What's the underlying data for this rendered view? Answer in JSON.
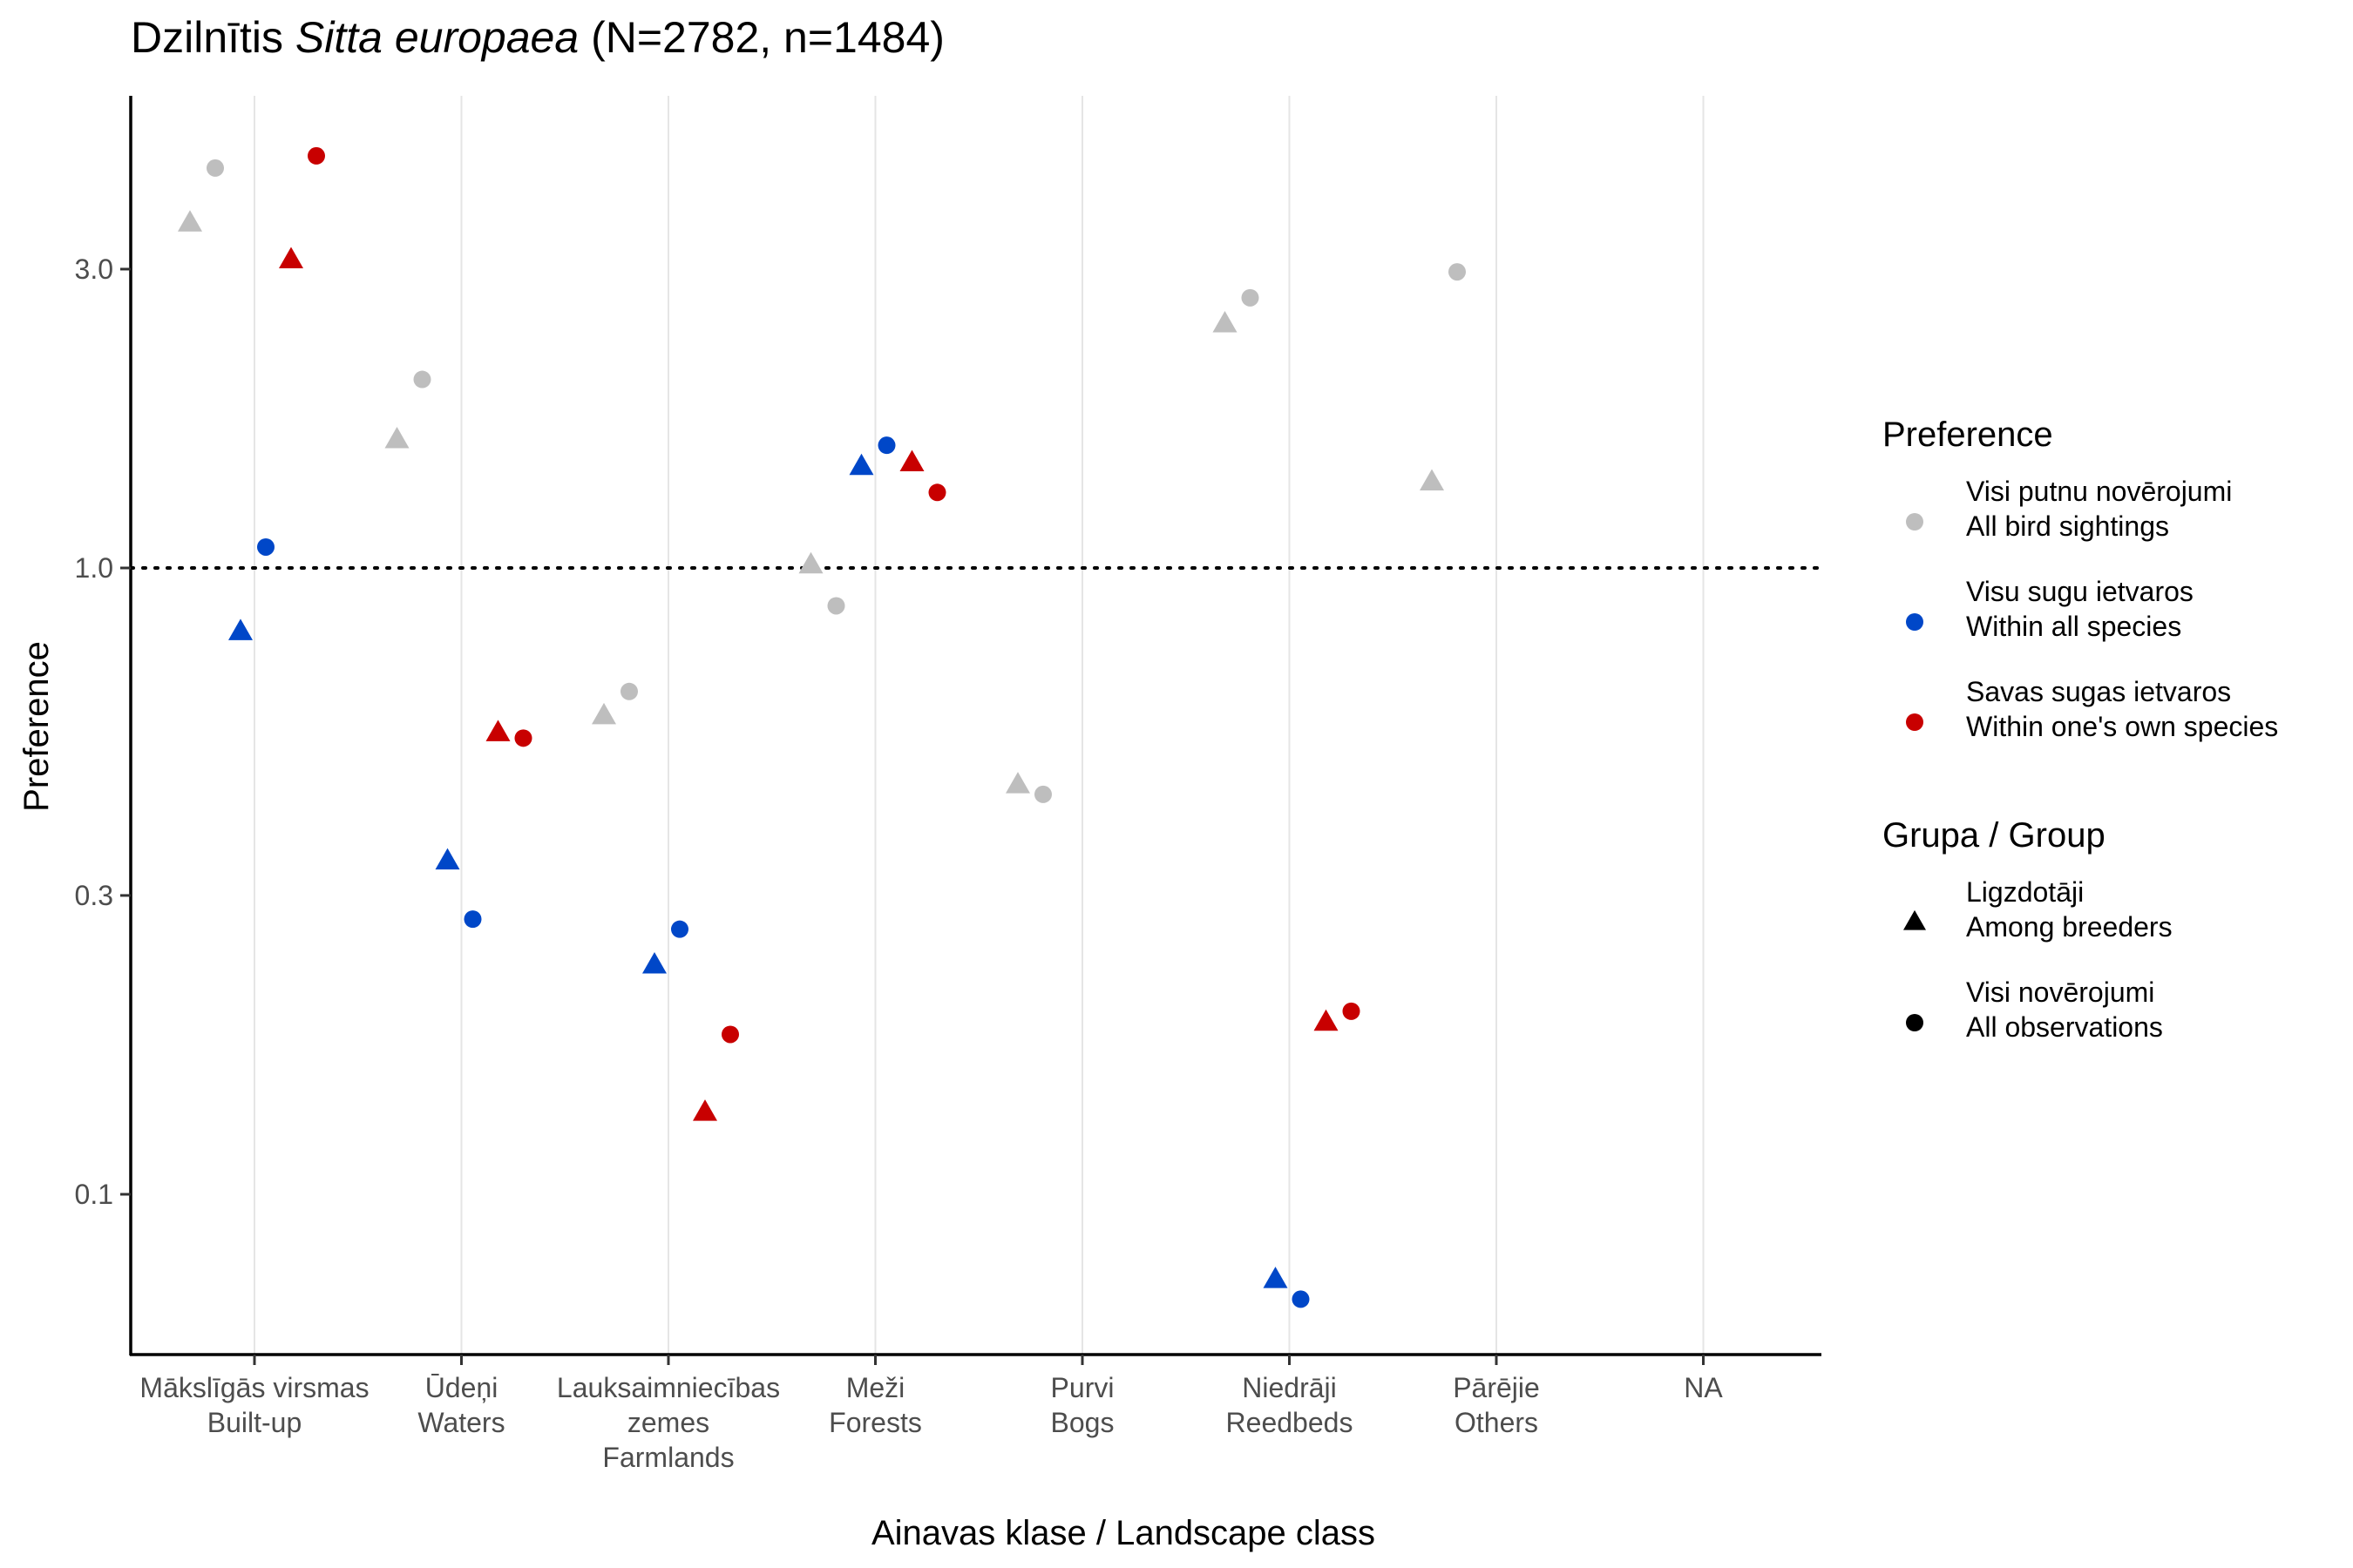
{
  "chart_data": {
    "type": "scatter",
    "title": {
      "prefix": "Dzilnītis ",
      "italic": "Sitta europaea",
      "suffix": " (N=2782, n=1484)"
    },
    "xlabel": "Ainavas klase / Landscape class",
    "ylabel": "Preference",
    "y_scale": "log10",
    "ylim": [
      0.062,
      4.85
    ],
    "yticks": [
      {
        "value": 0.1,
        "label": "0.1"
      },
      {
        "value": 0.3,
        "label": "0.3"
      },
      {
        "value": 1.0,
        "label": "1.0"
      },
      {
        "value": 3.0,
        "label": "3.0"
      }
    ],
    "reference_line": {
      "y": 1.0,
      "style": "dotted"
    },
    "grid": {
      "vertical_major": true,
      "horizontal": false
    },
    "categories": [
      {
        "lv": "Mākslīgās virsmas",
        "en": "Built-up"
      },
      {
        "lv": "Ūdeņi",
        "en": "Waters"
      },
      {
        "lv": "Lauksaimniecības",
        "lv2": "zemes",
        "en": "Farmlands"
      },
      {
        "lv": "Meži",
        "en": "Forests"
      },
      {
        "lv": "Purvi",
        "en": "Bogs"
      },
      {
        "lv": "Niedrāji",
        "en": "Reedbeds"
      },
      {
        "lv": "Pārējie",
        "en": "Others"
      },
      {
        "lv": "NA",
        "en": ""
      }
    ],
    "preference_series": [
      {
        "key": "all_sightings",
        "color": "#bebebe"
      },
      {
        "key": "all_species",
        "color": "#0047c8"
      },
      {
        "key": "own_species",
        "color": "#c80000"
      }
    ],
    "points": [
      {
        "category": 0,
        "preference": "all_sightings",
        "group": "breeders",
        "y": 3.55
      },
      {
        "category": 0,
        "preference": "all_sightings",
        "group": "all",
        "y": 4.35
      },
      {
        "category": 0,
        "preference": "all_species",
        "group": "breeders",
        "y": 0.79
      },
      {
        "category": 0,
        "preference": "all_species",
        "group": "all",
        "y": 1.08
      },
      {
        "category": 0,
        "preference": "own_species",
        "group": "breeders",
        "y": 3.1
      },
      {
        "category": 0,
        "preference": "own_species",
        "group": "all",
        "y": 4.55
      },
      {
        "category": 1,
        "preference": "all_sightings",
        "group": "breeders",
        "y": 1.6
      },
      {
        "category": 1,
        "preference": "all_sightings",
        "group": "all",
        "y": 2.0
      },
      {
        "category": 1,
        "preference": "all_species",
        "group": "breeders",
        "y": 0.34
      },
      {
        "category": 1,
        "preference": "all_species",
        "group": "all",
        "y": 0.275
      },
      {
        "category": 1,
        "preference": "own_species",
        "group": "breeders",
        "y": 0.545
      },
      {
        "category": 1,
        "preference": "own_species",
        "group": "all",
        "y": 0.535
      },
      {
        "category": 2,
        "preference": "all_sightings",
        "group": "breeders",
        "y": 0.58
      },
      {
        "category": 2,
        "preference": "all_sightings",
        "group": "all",
        "y": 0.635
      },
      {
        "category": 2,
        "preference": "all_species",
        "group": "breeders",
        "y": 0.232
      },
      {
        "category": 2,
        "preference": "all_species",
        "group": "all",
        "y": 0.265
      },
      {
        "category": 2,
        "preference": "own_species",
        "group": "breeders",
        "y": 0.135
      },
      {
        "category": 2,
        "preference": "own_species",
        "group": "all",
        "y": 0.18
      },
      {
        "category": 3,
        "preference": "all_sightings",
        "group": "breeders",
        "y": 1.01
      },
      {
        "category": 3,
        "preference": "all_sightings",
        "group": "all",
        "y": 0.87
      },
      {
        "category": 3,
        "preference": "all_species",
        "group": "breeders",
        "y": 1.45
      },
      {
        "category": 3,
        "preference": "all_species",
        "group": "all",
        "y": 1.57
      },
      {
        "category": 3,
        "preference": "own_species",
        "group": "breeders",
        "y": 1.47
      },
      {
        "category": 3,
        "preference": "own_species",
        "group": "all",
        "y": 1.32
      },
      {
        "category": 4,
        "preference": "all_sightings",
        "group": "breeders",
        "y": 0.45
      },
      {
        "category": 4,
        "preference": "all_sightings",
        "group": "all",
        "y": 0.435
      },
      {
        "category": 5,
        "preference": "all_sightings",
        "group": "breeders",
        "y": 2.45
      },
      {
        "category": 5,
        "preference": "all_sightings",
        "group": "all",
        "y": 2.7
      },
      {
        "category": 5,
        "preference": "all_species",
        "group": "breeders",
        "y": 0.073
      },
      {
        "category": 5,
        "preference": "all_species",
        "group": "all",
        "y": 0.068
      },
      {
        "category": 5,
        "preference": "own_species",
        "group": "breeders",
        "y": 0.188
      },
      {
        "category": 5,
        "preference": "own_species",
        "group": "all",
        "y": 0.196
      },
      {
        "category": 6,
        "preference": "all_sightings",
        "group": "breeders",
        "y": 1.37
      },
      {
        "category": 6,
        "preference": "all_sightings",
        "group": "all",
        "y": 2.97
      }
    ],
    "legends": [
      {
        "title": "Preference",
        "items": [
          {
            "key": "all_sightings",
            "shape": "circle",
            "color": "#bebebe",
            "line1": "Visi putnu novērojumi",
            "line2": "All bird sightings"
          },
          {
            "key": "all_species",
            "shape": "circle",
            "color": "#0047c8",
            "line1": "Visu sugu ietvaros",
            "line2": "Within all species"
          },
          {
            "key": "own_species",
            "shape": "circle",
            "color": "#c80000",
            "line1": "Savas sugas ietvaros",
            "line2": "Within one's own species"
          }
        ]
      },
      {
        "title": "Grupa / Group",
        "items": [
          {
            "key": "breeders",
            "shape": "triangle",
            "color": "#000000",
            "line1": "Ligzdotāji",
            "line2": "Among breeders"
          },
          {
            "key": "all",
            "shape": "circle",
            "color": "#000000",
            "line1": "Visi novērojumi",
            "line2": "All observations"
          }
        ]
      }
    ],
    "legend_position": "right"
  }
}
